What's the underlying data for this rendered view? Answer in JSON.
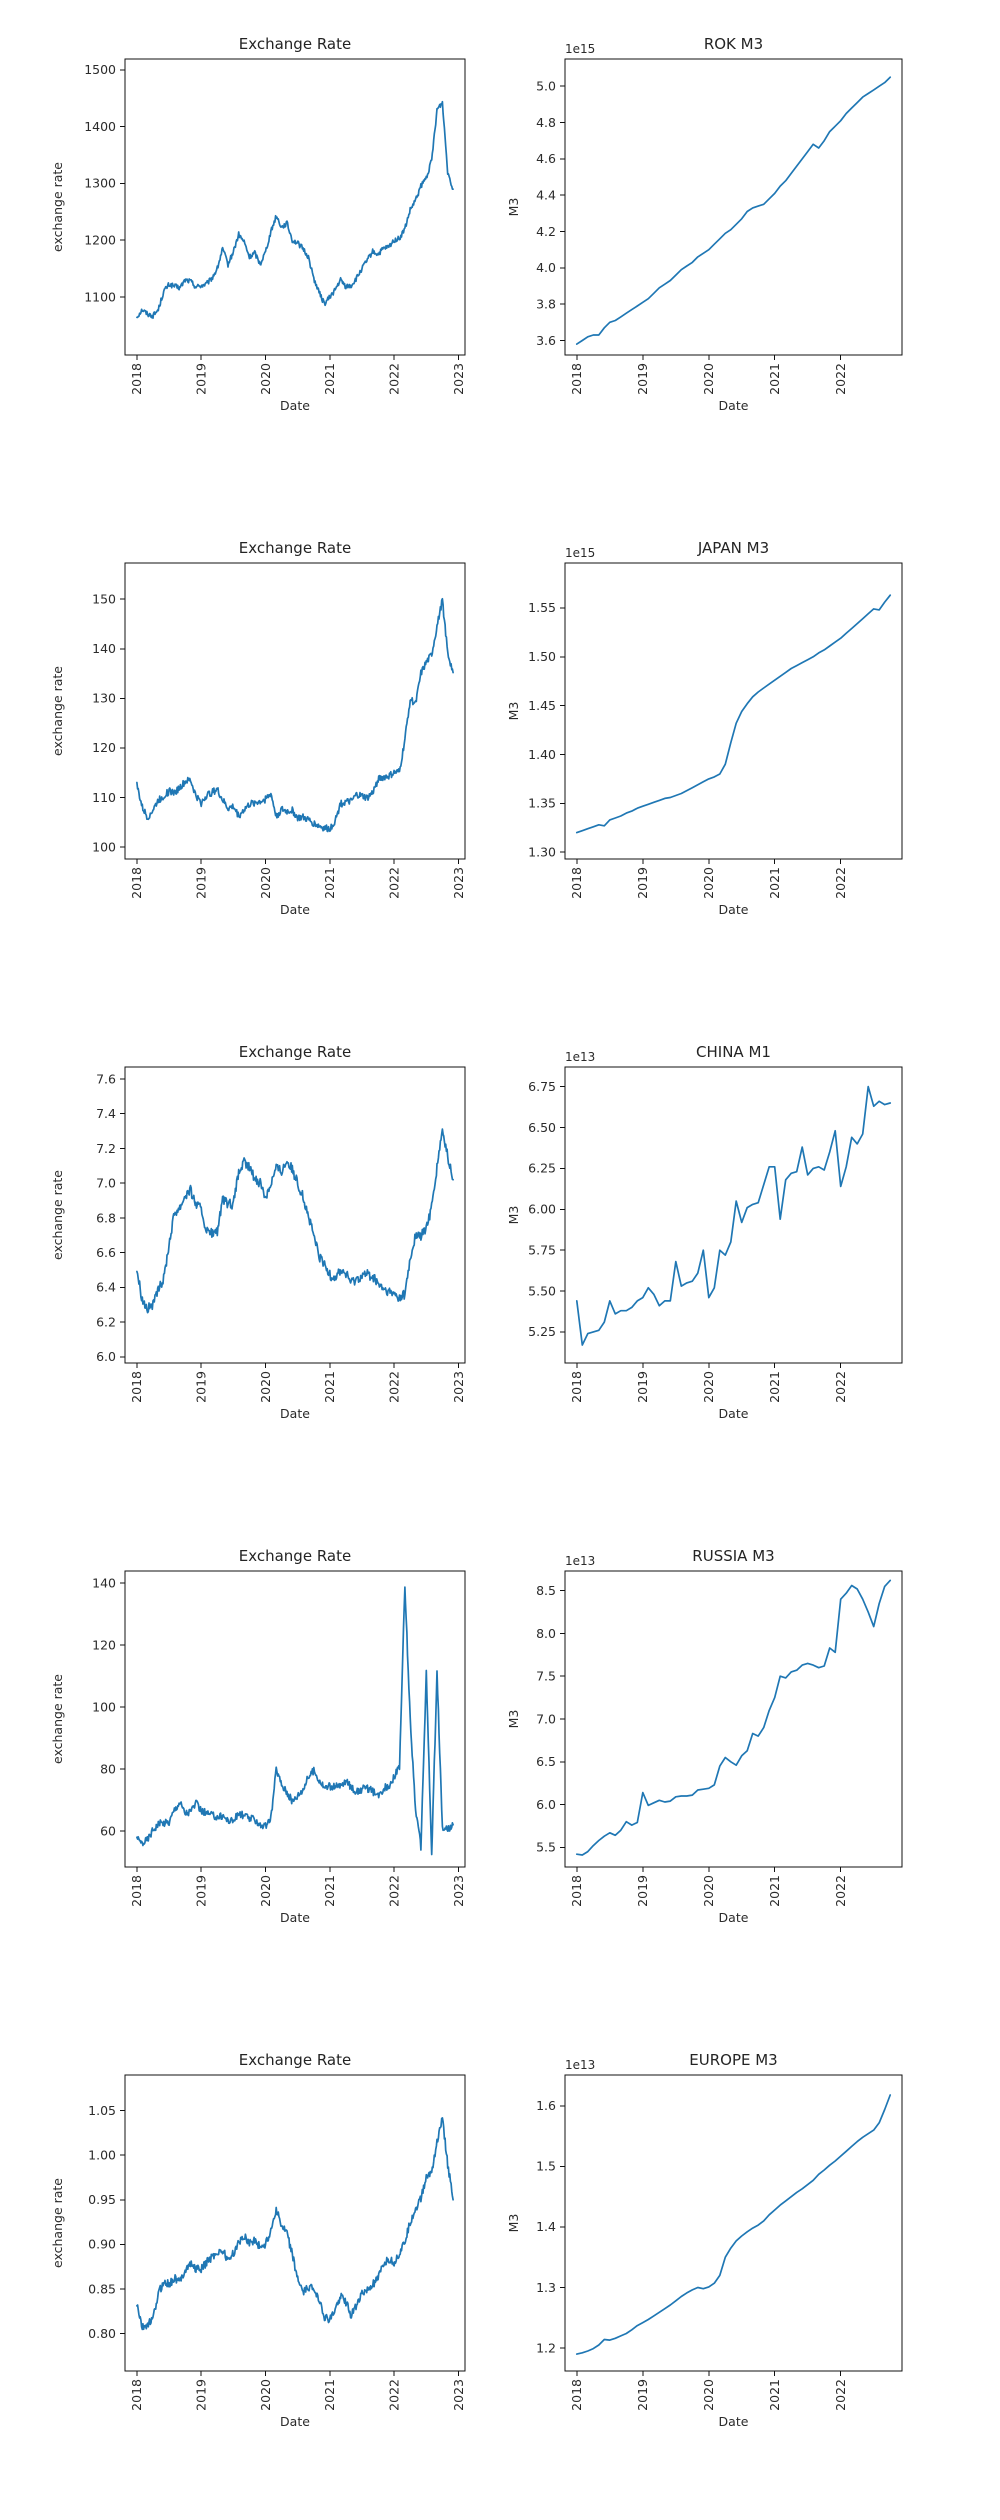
{
  "figure": {
    "rows": 5,
    "cols": 2,
    "background": "#ffffff",
    "line_color": "#1f77b4",
    "text_color": "#2b2b2b"
  },
  "chart_data": [
    {
      "type": "line",
      "title": "Exchange Rate",
      "xlabel": "Date",
      "ylabel": "exchange rate",
      "offset_label": "",
      "x_ticks": [
        "2018",
        "2019",
        "2020",
        "2021",
        "2022",
        "2023"
      ],
      "y_ticks": [
        "1100",
        "1200",
        "1300",
        "1400",
        "1500"
      ],
      "ylim": [
        998,
        1519
      ],
      "x_start_year": 2018,
      "points_per_year": 12,
      "noise": 4.5,
      "grid": false,
      "legend": null,
      "values": [
        1065,
        1078,
        1070,
        1067,
        1078,
        1110,
        1122,
        1119,
        1116,
        1130,
        1128,
        1118,
        1120,
        1123,
        1133,
        1150,
        1185,
        1157,
        1180,
        1210,
        1197,
        1170,
        1178,
        1158,
        1180,
        1215,
        1243,
        1223,
        1230,
        1200,
        1195,
        1185,
        1170,
        1133,
        1108,
        1088,
        1100,
        1113,
        1130,
        1118,
        1120,
        1133,
        1150,
        1165,
        1180,
        1175,
        1185,
        1188,
        1200,
        1203,
        1220,
        1253,
        1270,
        1295,
        1310,
        1340,
        1430,
        1442,
        1320,
        1290
      ]
    },
    {
      "type": "line",
      "title": "ROK M3",
      "xlabel": "Date",
      "ylabel": "M3",
      "offset_label": "1e15",
      "x_ticks": [
        "2018",
        "2019",
        "2020",
        "2021",
        "2022"
      ],
      "y_ticks": [
        "3.6",
        "3.8",
        "4.0",
        "4.2",
        "4.4",
        "4.6",
        "4.8",
        "5.0"
      ],
      "ylim": [
        3.52,
        5.15
      ],
      "x_start_year": 2018,
      "points_per_year": 12,
      "noise": 0,
      "grid": false,
      "legend": null,
      "values": [
        3.58,
        3.6,
        3.62,
        3.63,
        3.63,
        3.67,
        3.7,
        3.71,
        3.73,
        3.75,
        3.77,
        3.79,
        3.81,
        3.83,
        3.86,
        3.89,
        3.91,
        3.93,
        3.96,
        3.99,
        4.01,
        4.03,
        4.06,
        4.08,
        4.1,
        4.13,
        4.16,
        4.19,
        4.21,
        4.24,
        4.27,
        4.31,
        4.33,
        4.34,
        4.35,
        4.38,
        4.41,
        4.45,
        4.48,
        4.52,
        4.56,
        4.6,
        4.64,
        4.68,
        4.66,
        4.7,
        4.75,
        4.78,
        4.81,
        4.85,
        4.88,
        4.91,
        4.94,
        4.96,
        4.98,
        5.0,
        5.02,
        5.05
      ]
    },
    {
      "type": "line",
      "title": "Exchange Rate",
      "xlabel": "Date",
      "ylabel": "exchange rate",
      "offset_label": "",
      "x_ticks": [
        "2018",
        "2019",
        "2020",
        "2021",
        "2022",
        "2023"
      ],
      "y_ticks": [
        "100",
        "110",
        "120",
        "130",
        "140",
        "150"
      ],
      "ylim": [
        97.6,
        157.3
      ],
      "x_start_year": 2018,
      "points_per_year": 12,
      "noise": 0.7,
      "grid": false,
      "legend": null,
      "values": [
        112.5,
        108.0,
        106.0,
        107.5,
        109.5,
        110.2,
        111.3,
        111.0,
        112.0,
        113.2,
        113.5,
        110.4,
        108.9,
        110.5,
        111.0,
        111.6,
        109.5,
        107.8,
        108.2,
        106.3,
        107.6,
        108.6,
        109.0,
        109.2,
        109.6,
        110.8,
        106.2,
        107.6,
        107.2,
        107.4,
        105.9,
        106.0,
        105.5,
        104.8,
        104.3,
        103.8,
        103.7,
        105.4,
        108.7,
        109.1,
        109.2,
        110.6,
        110.3,
        109.9,
        111.0,
        113.6,
        114.1,
        114.3,
        115.0,
        115.2,
        121.7,
        129.9,
        128.8,
        135.0,
        137.2,
        138.8,
        144.5,
        149.8,
        139.0,
        135.2
      ]
    },
    {
      "type": "line",
      "title": "JAPAN M3",
      "xlabel": "Date",
      "ylabel": "M3",
      "offset_label": "1e15",
      "x_ticks": [
        "2018",
        "2019",
        "2020",
        "2021",
        "2022"
      ],
      "y_ticks": [
        "1.30",
        "1.35",
        "1.40",
        "1.45",
        "1.50",
        "1.55"
      ],
      "ylim": [
        1.293,
        1.596
      ],
      "x_start_year": 2018,
      "points_per_year": 12,
      "noise": 0,
      "grid": false,
      "legend": null,
      "values": [
        1.32,
        1.322,
        1.324,
        1.326,
        1.328,
        1.327,
        1.333,
        1.335,
        1.337,
        1.34,
        1.342,
        1.345,
        1.347,
        1.349,
        1.351,
        1.353,
        1.355,
        1.356,
        1.358,
        1.36,
        1.363,
        1.366,
        1.369,
        1.372,
        1.375,
        1.377,
        1.38,
        1.39,
        1.412,
        1.432,
        1.444,
        1.452,
        1.459,
        1.464,
        1.468,
        1.472,
        1.476,
        1.48,
        1.484,
        1.488,
        1.491,
        1.494,
        1.497,
        1.5,
        1.504,
        1.507,
        1.511,
        1.515,
        1.519,
        1.524,
        1.529,
        1.534,
        1.539,
        1.544,
        1.549,
        1.548,
        1.556,
        1.563
      ]
    },
    {
      "type": "line",
      "title": "Exchange Rate",
      "xlabel": "Date",
      "ylabel": "exchange rate",
      "offset_label": "",
      "x_ticks": [
        "2018",
        "2019",
        "2020",
        "2021",
        "2022",
        "2023"
      ],
      "y_ticks": [
        "6.0",
        "6.2",
        "6.4",
        "6.6",
        "6.8",
        "7.0",
        "7.2",
        "7.4",
        "7.6"
      ],
      "ylim": [
        5.965,
        7.669
      ],
      "x_start_year": 2018,
      "points_per_year": 12,
      "noise": 0.028,
      "grid": false,
      "legend": null,
      "values": [
        6.5,
        6.33,
        6.28,
        6.3,
        6.38,
        6.45,
        6.65,
        6.83,
        6.86,
        6.93,
        6.96,
        6.88,
        6.85,
        6.72,
        6.71,
        6.72,
        6.9,
        6.88,
        6.88,
        7.06,
        7.12,
        7.09,
        7.03,
        7.0,
        6.92,
        7.0,
        7.09,
        7.07,
        7.13,
        7.08,
        7.0,
        6.92,
        6.81,
        6.7,
        6.58,
        6.53,
        6.47,
        6.46,
        6.5,
        6.48,
        6.43,
        6.45,
        6.47,
        6.48,
        6.46,
        6.42,
        6.39,
        6.37,
        6.36,
        6.34,
        6.36,
        6.56,
        6.7,
        6.7,
        6.74,
        6.86,
        7.1,
        7.3,
        7.15,
        7.02
      ]
    },
    {
      "type": "line",
      "title": "CHINA M1",
      "xlabel": "Date",
      "ylabel": "M3",
      "offset_label": "1e13",
      "x_ticks": [
        "2018",
        "2019",
        "2020",
        "2021",
        "2022"
      ],
      "y_ticks": [
        "5.25",
        "5.50",
        "5.75",
        "6.00",
        "6.25",
        "6.50",
        "6.75"
      ],
      "ylim": [
        5.06,
        6.87
      ],
      "x_start_year": 2018,
      "points_per_year": 12,
      "noise": 0,
      "grid": false,
      "legend": null,
      "values": [
        5.44,
        5.17,
        5.24,
        5.25,
        5.26,
        5.31,
        5.44,
        5.36,
        5.38,
        5.38,
        5.4,
        5.44,
        5.46,
        5.52,
        5.48,
        5.41,
        5.44,
        5.44,
        5.68,
        5.53,
        5.55,
        5.56,
        5.61,
        5.75,
        5.46,
        5.52,
        5.75,
        5.72,
        5.8,
        6.05,
        5.92,
        6.01,
        6.03,
        6.04,
        6.15,
        6.26,
        6.26,
        5.94,
        6.18,
        6.22,
        6.23,
        6.38,
        6.21,
        6.25,
        6.26,
        6.24,
        6.35,
        6.48,
        6.14,
        6.26,
        6.44,
        6.4,
        6.46,
        6.75,
        6.63,
        6.66,
        6.64,
        6.65
      ]
    },
    {
      "type": "line",
      "title": "Exchange Rate",
      "xlabel": "Date",
      "ylabel": "exchange rate",
      "offset_label": "",
      "x_ticks": [
        "2018",
        "2019",
        "2020",
        "2021",
        "2022",
        "2023"
      ],
      "y_ticks": [
        "60",
        "80",
        "100",
        "120",
        "140"
      ],
      "ylim": [
        48.4,
        143.9
      ],
      "x_start_year": 2018,
      "points_per_year": 12,
      "noise": 1.2,
      "grid": false,
      "legend": null,
      "values": [
        57.2,
        56.2,
        57.3,
        60.5,
        62.3,
        62.7,
        62.9,
        66.9,
        69.4,
        65.8,
        66.3,
        69.0,
        66.5,
        65.7,
        65.1,
        64.5,
        65.0,
        63.4,
        63.3,
        65.6,
        65.0,
        64.0,
        63.8,
        62.0,
        61.5,
        64.0,
        80.0,
        75.0,
        72.5,
        69.5,
        71.5,
        73.5,
        77.5,
        79.5,
        76.5,
        74.0,
        74.5,
        74.2,
        74.5,
        76.0,
        74.3,
        72.5,
        73.6,
        73.8,
        72.8,
        71.0,
        73.8,
        74.5,
        77.5,
        81.0,
        139.0,
        96.0,
        67.0,
        55.0,
        111.0,
        52.0,
        111.0,
        61.0,
        60.5,
        62.0
      ]
    },
    {
      "type": "line",
      "title": "RUSSIA M3",
      "xlabel": "Date",
      "ylabel": "M3",
      "offset_label": "1e13",
      "x_ticks": [
        "2018",
        "2019",
        "2020",
        "2021",
        "2022"
      ],
      "y_ticks": [
        "5.5",
        "6.0",
        "6.5",
        "7.0",
        "7.5",
        "8.0",
        "8.5"
      ],
      "ylim": [
        5.27,
        8.73
      ],
      "x_start_year": 2018,
      "points_per_year": 12,
      "noise": 0,
      "grid": false,
      "legend": null,
      "values": [
        5.42,
        5.41,
        5.45,
        5.52,
        5.58,
        5.63,
        5.67,
        5.64,
        5.7,
        5.8,
        5.76,
        5.79,
        6.14,
        5.99,
        6.02,
        6.05,
        6.03,
        6.04,
        6.09,
        6.1,
        6.1,
        6.11,
        6.17,
        6.18,
        6.19,
        6.23,
        6.45,
        6.55,
        6.5,
        6.46,
        6.57,
        6.63,
        6.83,
        6.8,
        6.9,
        7.1,
        7.25,
        7.5,
        7.48,
        7.55,
        7.57,
        7.63,
        7.65,
        7.63,
        7.6,
        7.62,
        7.83,
        7.78,
        8.4,
        8.47,
        8.56,
        8.52,
        8.4,
        8.25,
        8.08,
        8.35,
        8.55,
        8.62
      ]
    },
    {
      "type": "line",
      "title": "Exchange Rate",
      "xlabel": "Date",
      "ylabel": "exchange rate",
      "offset_label": "",
      "x_ticks": [
        "2018",
        "2019",
        "2020",
        "2021",
        "2022",
        "2023"
      ],
      "y_ticks": [
        "0.80",
        "0.85",
        "0.90",
        "0.95",
        "1.00",
        "1.05"
      ],
      "ylim": [
        0.758,
        1.09
      ],
      "x_start_year": 2018,
      "points_per_year": 12,
      "noise": 0.0045,
      "grid": false,
      "legend": null,
      "values": [
        0.833,
        0.806,
        0.81,
        0.816,
        0.845,
        0.858,
        0.855,
        0.862,
        0.858,
        0.872,
        0.878,
        0.873,
        0.872,
        0.88,
        0.886,
        0.891,
        0.893,
        0.882,
        0.89,
        0.901,
        0.91,
        0.902,
        0.905,
        0.897,
        0.9,
        0.916,
        0.94,
        0.92,
        0.912,
        0.888,
        0.862,
        0.845,
        0.852,
        0.85,
        0.84,
        0.818,
        0.815,
        0.826,
        0.843,
        0.835,
        0.82,
        0.833,
        0.845,
        0.848,
        0.855,
        0.861,
        0.878,
        0.883,
        0.88,
        0.89,
        0.903,
        0.925,
        0.94,
        0.952,
        0.975,
        0.982,
        1.015,
        1.04,
        0.99,
        0.95
      ]
    },
    {
      "type": "line",
      "title": "EUROPE M3",
      "xlabel": "Date",
      "ylabel": "M3",
      "offset_label": "1e13",
      "x_ticks": [
        "2018",
        "2019",
        "2020",
        "2021",
        "2022"
      ],
      "y_ticks": [
        "1.2",
        "1.3",
        "1.4",
        "1.5",
        "1.6"
      ],
      "ylim": [
        1.162,
        1.651
      ],
      "x_start_year": 2018,
      "points_per_year": 12,
      "noise": 0,
      "grid": false,
      "legend": null,
      "values": [
        1.19,
        1.192,
        1.195,
        1.199,
        1.205,
        1.214,
        1.213,
        1.216,
        1.22,
        1.224,
        1.23,
        1.237,
        1.242,
        1.247,
        1.253,
        1.259,
        1.265,
        1.271,
        1.278,
        1.285,
        1.291,
        1.296,
        1.3,
        1.298,
        1.301,
        1.307,
        1.32,
        1.35,
        1.365,
        1.377,
        1.385,
        1.392,
        1.398,
        1.403,
        1.41,
        1.42,
        1.428,
        1.436,
        1.443,
        1.45,
        1.457,
        1.463,
        1.47,
        1.477,
        1.487,
        1.494,
        1.502,
        1.509,
        1.517,
        1.525,
        1.533,
        1.541,
        1.548,
        1.554,
        1.56,
        1.572,
        1.594,
        1.618
      ]
    }
  ]
}
